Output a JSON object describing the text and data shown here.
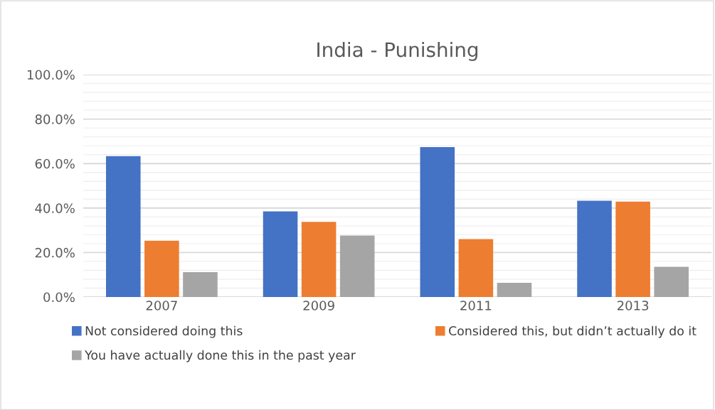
{
  "chart_data": {
    "type": "bar",
    "title": "India - Punishing",
    "categories": [
      "2007",
      "2009",
      "2011",
      "2013"
    ],
    "series": [
      {
        "name": "Not considered doing this",
        "color": "#4472c4",
        "values": [
          63.3,
          38.5,
          67.4,
          43.3
        ]
      },
      {
        "name": "Considered this, but didn’t actually do it",
        "color": "#ed7d31",
        "values": [
          25.3,
          33.8,
          26.0,
          42.9
        ]
      },
      {
        "name": "You have actually done this in the past year",
        "color": "#a5a5a5",
        "values": [
          11.2,
          27.6,
          6.4,
          13.6
        ]
      }
    ],
    "ylim": [
      0,
      100
    ],
    "yticks": [
      {
        "value": 0,
        "label": "0.0%"
      },
      {
        "value": 20,
        "label": "20.0%"
      },
      {
        "value": 40,
        "label": "40.0%"
      },
      {
        "value": 60,
        "label": "60.0%"
      },
      {
        "value": 80,
        "label": "80.0%"
      },
      {
        "value": 100,
        "label": "100.0%"
      }
    ],
    "grid": "y",
    "legend": "bottom"
  }
}
